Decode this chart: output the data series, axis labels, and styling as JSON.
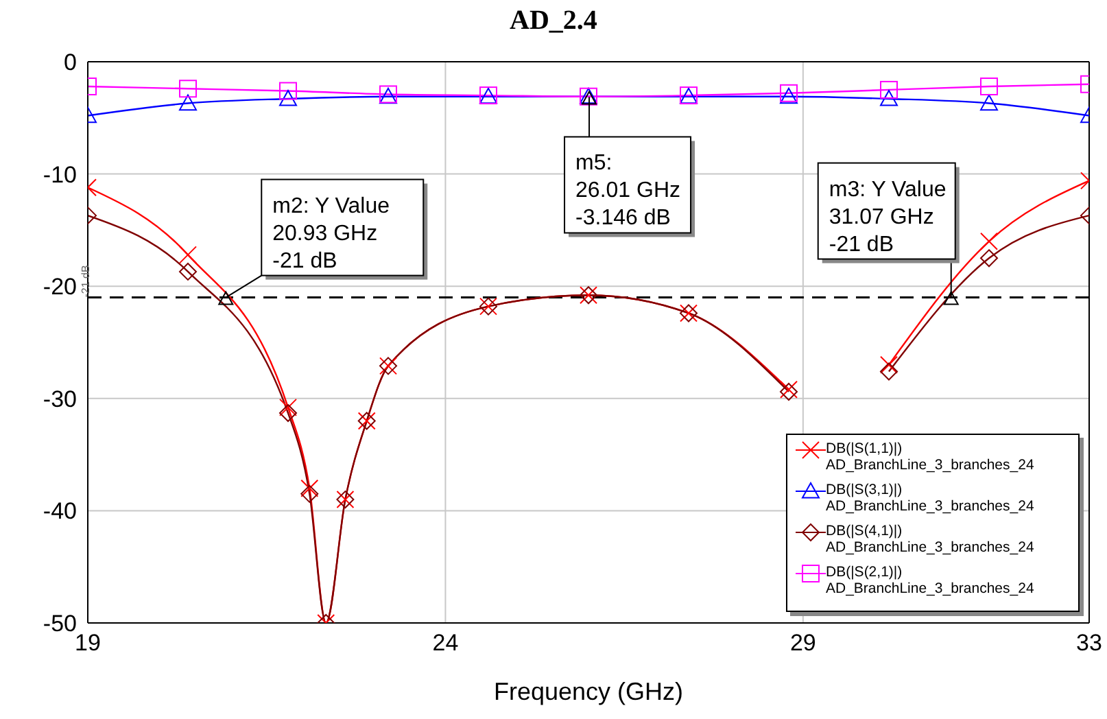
{
  "chart_data": {
    "type": "line",
    "title": "AD_2.4",
    "xlabel": "Frequency (GHz)",
    "xlim": [
      19,
      33
    ],
    "xticks": [
      19,
      24,
      29,
      33
    ],
    "ylim": [
      -50,
      0
    ],
    "yticks": [
      -50,
      -40,
      -30,
      -20,
      -10,
      0
    ],
    "grid": true,
    "legend": "bottom right",
    "line_style": "solid",
    "series": [
      {
        "name": "DB(|S(1,1)|)\nAD_BranchLine_3_branches_24",
        "color": "#ff0000",
        "marker": "cross",
        "x": [
          19,
          20.4,
          21.8,
          22.1,
          22.33,
          22.6,
          22.9,
          23.2,
          24.6,
          26,
          27.4,
          28.8,
          29.2,
          29.5,
          29.72,
          30.0,
          30.2,
          31.6,
          33
        ],
        "values": [
          -11.2,
          -17.2,
          -30.8,
          -38,
          -50,
          -39,
          -32,
          -27.1,
          -21.8,
          -20.8,
          -22.4,
          -29.2,
          null,
          null,
          null,
          null,
          -27,
          -16,
          -10.6
        ]
      },
      {
        "name": "DB(|S(3,1)|)\nAD_BranchLine_3_branches_24",
        "color": "#0000ff",
        "marker": "triangle",
        "x": [
          19,
          20.4,
          21.8,
          23.2,
          24.6,
          26,
          27.4,
          28.8,
          30.2,
          31.6,
          33
        ],
        "values": [
          -4.8,
          -3.7,
          -3.3,
          -3.1,
          -3.1,
          -3.1,
          -3.1,
          -3.1,
          -3.3,
          -3.7,
          -4.8
        ]
      },
      {
        "name": "DB(|S(4,1)|)\nAD_BranchLine_3_branches_24",
        "color": "#800000",
        "marker": "diamond",
        "x": [
          19,
          20.4,
          21.8,
          22.1,
          22.33,
          22.6,
          22.9,
          23.2,
          24.6,
          26,
          27.4,
          28.8,
          29.2,
          29.5,
          29.72,
          30.0,
          30.2,
          31.6,
          33
        ],
        "values": [
          -13.7,
          -18.7,
          -31.3,
          -38.5,
          -50,
          -39,
          -32,
          -27.1,
          -21.8,
          -20.8,
          -22.4,
          -29.4,
          null,
          null,
          null,
          null,
          -27.6,
          -17.5,
          -13.7
        ]
      },
      {
        "name": "DB(|S(2,1)|)\nAD_BranchLine_3_branches_24",
        "color": "#ff00ff",
        "marker": "square",
        "x": [
          19,
          20.4,
          21.8,
          23.2,
          24.6,
          26,
          27.4,
          28.8,
          30.2,
          31.6,
          33
        ],
        "values": [
          -2.2,
          -2.4,
          -2.6,
          -2.9,
          -3.0,
          -3.1,
          -3.0,
          -2.8,
          -2.5,
          -2.2,
          -2.0
        ]
      }
    ],
    "ref_lines": [
      {
        "axis": "y",
        "value": -21,
        "label": "-21 dB",
        "line_style": "dashed",
        "color": "#000000"
      }
    ],
    "annotations": [
      {
        "text": "m2: Y Value\n20.93 GHz\n-21 dB",
        "x": 20.93,
        "y": -21
      },
      {
        "text": "m5:\n26.01 GHz\n-3.146 dB",
        "x": 26.01,
        "y": -3.146
      },
      {
        "text": "m3: Y Value\n31.07 GHz\n-21 dB",
        "x": 31.07,
        "y": -21
      }
    ]
  }
}
